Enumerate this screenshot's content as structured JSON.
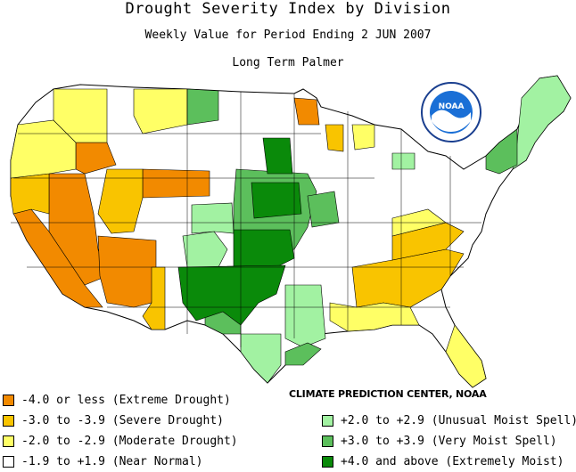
{
  "title": "Drought Severity Index by Division",
  "subtitle": "Weekly Value for Period Ending  2 JUN 2007",
  "index_name": "Long Term Palmer",
  "credit": "CLIMATE PREDICTION CENTER, NOAA",
  "logo_text": "NOAA",
  "legend": [
    {
      "label": "-4.0 or less (Extreme Drought)",
      "color": "#f28a00"
    },
    {
      "label": "-3.0 to -3.9 (Severe Drought)",
      "color": "#f9c400"
    },
    {
      "label": "-2.0 to -2.9 (Moderate Drought)",
      "color": "#ffff66"
    },
    {
      "label": "-1.9 to +1.9 (Near Normal)",
      "color": "#ffffff"
    },
    {
      "label": "+2.0 to +2.9 (Unusual Moist Spell)",
      "color": "#a2f2a2"
    },
    {
      "label": "+3.0 to +3.9 (Very Moist Spell)",
      "color": "#5cbf5c"
    },
    {
      "label": "+4.0 and above (Extremely Moist)",
      "color": "#0a8a0a"
    }
  ]
}
